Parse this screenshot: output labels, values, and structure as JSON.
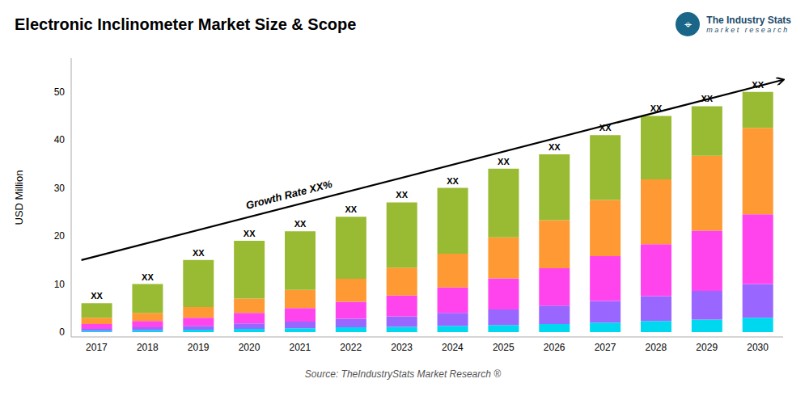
{
  "chart_data": {
    "type": "bar",
    "stacked": true,
    "grid": false,
    "title": "Electronic Inclinometer Market Size & Scope",
    "ylabel": "USD Million",
    "source": "Source: TheIndustryStats Market Research ®",
    "logo": [
      "⌖",
      "The Industry Stats",
      "m a r k e t   r e s e a r c h"
    ],
    "categories": [
      "2017",
      "2018",
      "2019",
      "2020",
      "2021",
      "2022",
      "2023",
      "2024",
      "2025",
      "2026",
      "2027",
      "2028",
      "2029",
      "2030"
    ],
    "series": [
      {
        "color": "#00d8f0",
        "values": [
          0.3,
          0.4,
          0.5,
          0.7,
          0.8,
          1.0,
          1.1,
          1.3,
          1.5,
          1.7,
          2.0,
          2.3,
          2.6,
          3.0
        ]
      },
      {
        "color": "#9966ff",
        "values": [
          0.4,
          0.6,
          0.8,
          1.1,
          1.4,
          1.8,
          2.2,
          2.7,
          3.2,
          3.8,
          4.5,
          5.2,
          6.0,
          7.0
        ]
      },
      {
        "color": "#ff44ee",
        "values": [
          1.0,
          1.3,
          1.7,
          2.2,
          2.8,
          3.5,
          4.3,
          5.3,
          6.5,
          7.8,
          9.3,
          10.8,
          12.5,
          14.5
        ]
      },
      {
        "color": "#ff9933",
        "values": [
          1.3,
          1.7,
          2.2,
          3.0,
          3.8,
          4.8,
          5.8,
          7.0,
          8.5,
          10.0,
          11.7,
          13.5,
          15.6,
          18.0
        ]
      },
      {
        "color": "#99bb33",
        "values": [
          3.0,
          6.0,
          9.8,
          12.0,
          12.2,
          12.9,
          13.6,
          13.7,
          14.3,
          13.7,
          13.5,
          13.2,
          10.3,
          7.5
        ]
      }
    ],
    "total_labels": [
      "XX",
      "XX",
      "XX",
      "XX",
      "XX",
      "XX",
      "XX",
      "XX",
      "XX",
      "XX",
      "XX",
      "XX",
      "XX",
      "XX"
    ],
    "annotations": [
      {
        "text": "Growth Rate XX%",
        "arrow_y": [
          15.0,
          52.5
        ]
      }
    ],
    "ylim": [
      -1,
      57
    ],
    "yticks": [
      0,
      10,
      20,
      30,
      40,
      50
    ]
  }
}
